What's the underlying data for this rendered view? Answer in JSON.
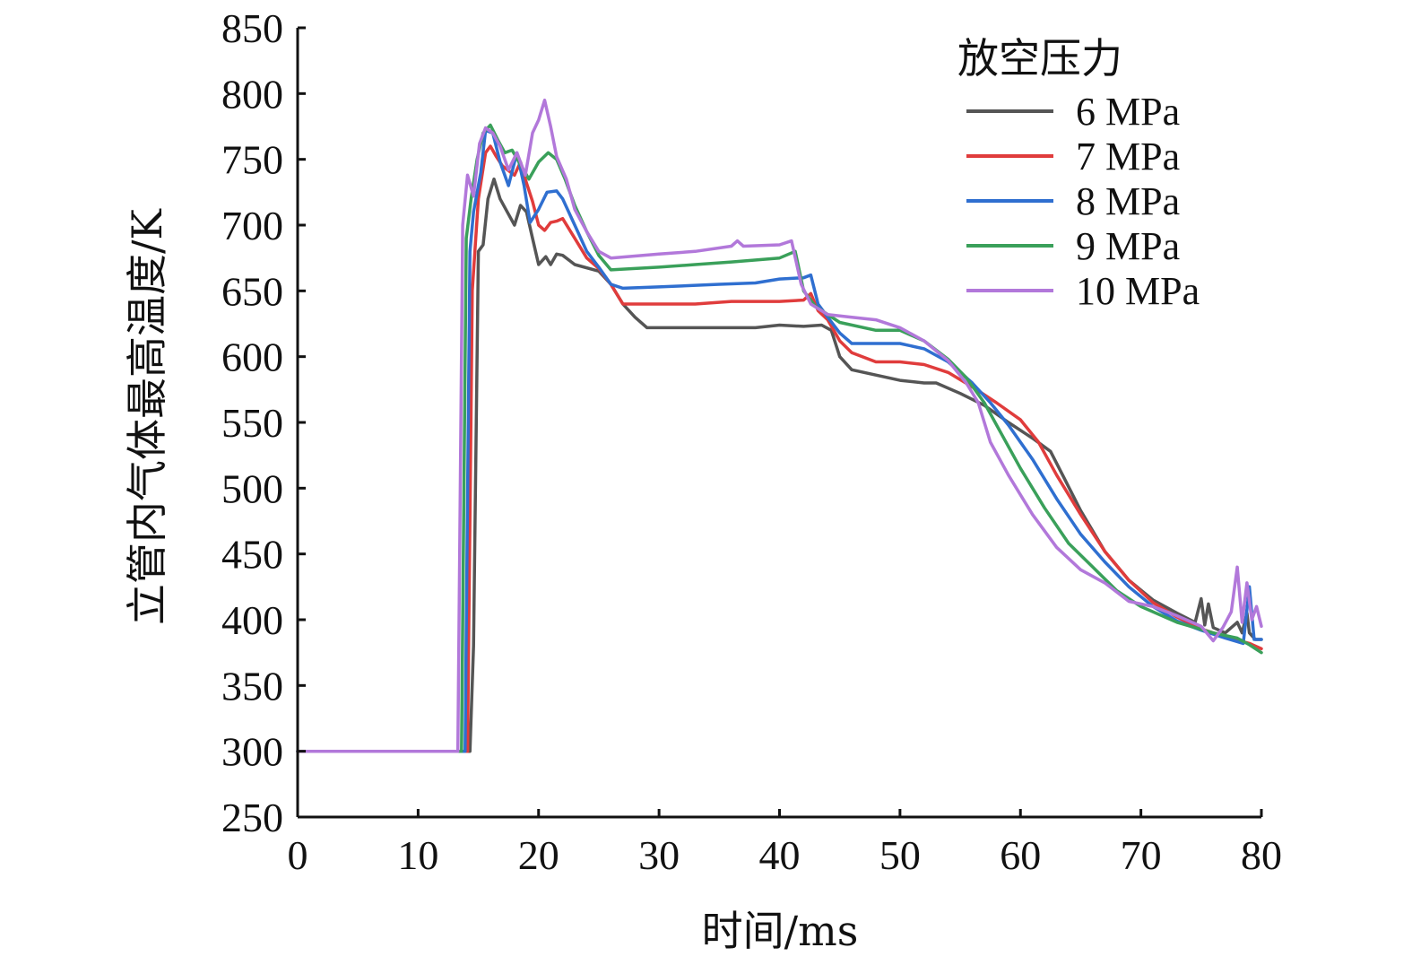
{
  "chart_data": {
    "type": "line",
    "title": "",
    "xlabel": "时间/ms",
    "ylabel": "立管内气体最高温度/K",
    "xlim": [
      0,
      80
    ],
    "ylim": [
      250,
      850
    ],
    "xticks": [
      0,
      10,
      20,
      30,
      40,
      50,
      60,
      70,
      80
    ],
    "yticks": [
      250,
      300,
      350,
      400,
      450,
      500,
      550,
      600,
      650,
      700,
      750,
      800,
      850
    ],
    "grid": false,
    "legend": {
      "title": "放空压力",
      "placement": "top-right"
    },
    "series": [
      {
        "name": "6 MPa",
        "color": "#555555",
        "points": [
          [
            0,
            300
          ],
          [
            13,
            300
          ],
          [
            14.3,
            300
          ],
          [
            14.6,
            380
          ],
          [
            15,
            680
          ],
          [
            15.4,
            685
          ],
          [
            15.8,
            720
          ],
          [
            16.3,
            735
          ],
          [
            16.8,
            720
          ],
          [
            17.4,
            710
          ],
          [
            18,
            700
          ],
          [
            18.5,
            715
          ],
          [
            19,
            710
          ],
          [
            19.5,
            690
          ],
          [
            20,
            670
          ],
          [
            20.6,
            676
          ],
          [
            21,
            670
          ],
          [
            21.5,
            678
          ],
          [
            22,
            677
          ],
          [
            23,
            670
          ],
          [
            25,
            665
          ],
          [
            26,
            655
          ],
          [
            27,
            640
          ],
          [
            28,
            630
          ],
          [
            29,
            622
          ],
          [
            35,
            622
          ],
          [
            38,
            622
          ],
          [
            40,
            624
          ],
          [
            42,
            623
          ],
          [
            43.5,
            624
          ],
          [
            44.3,
            620
          ],
          [
            45,
            600
          ],
          [
            46,
            590
          ],
          [
            48,
            586
          ],
          [
            50,
            582
          ],
          [
            52,
            580
          ],
          [
            53,
            580
          ],
          [
            55,
            572
          ],
          [
            57,
            563
          ],
          [
            59,
            550
          ],
          [
            61,
            538
          ],
          [
            62.5,
            528
          ],
          [
            63.5,
            510
          ],
          [
            65,
            483
          ],
          [
            67,
            452
          ],
          [
            69,
            430
          ],
          [
            71,
            415
          ],
          [
            73,
            405
          ],
          [
            74.5,
            398
          ],
          [
            75,
            416
          ],
          [
            75.3,
            396
          ],
          [
            75.6,
            412
          ],
          [
            76,
            394
          ],
          [
            77,
            390
          ],
          [
            78,
            398
          ],
          [
            78.4,
            390
          ],
          [
            78.8,
            405
          ],
          [
            79,
            390
          ],
          [
            79.5,
            385
          ],
          [
            80,
            385
          ]
        ]
      },
      {
        "name": "7 MPa",
        "color": "#e03c3c",
        "points": [
          [
            0,
            300
          ],
          [
            13.5,
            300
          ],
          [
            14.1,
            300
          ],
          [
            14.5,
            650
          ],
          [
            15,
            720
          ],
          [
            15.6,
            755
          ],
          [
            16,
            760
          ],
          [
            16.5,
            752
          ],
          [
            17,
            745
          ],
          [
            18,
            738
          ],
          [
            18.5,
            748
          ],
          [
            19,
            732
          ],
          [
            19.5,
            718
          ],
          [
            20,
            700
          ],
          [
            20.5,
            696
          ],
          [
            21,
            702
          ],
          [
            21.5,
            703
          ],
          [
            22,
            705
          ],
          [
            23,
            690
          ],
          [
            24,
            675
          ],
          [
            25,
            667
          ],
          [
            26,
            655
          ],
          [
            27,
            640
          ],
          [
            28,
            640
          ],
          [
            33,
            640
          ],
          [
            36,
            642
          ],
          [
            40,
            642
          ],
          [
            42,
            643
          ],
          [
            42.6,
            648
          ],
          [
            43.2,
            635
          ],
          [
            44,
            628
          ],
          [
            45,
            612
          ],
          [
            46,
            603
          ],
          [
            48,
            596
          ],
          [
            50,
            596
          ],
          [
            52,
            594
          ],
          [
            54,
            588
          ],
          [
            56,
            577
          ],
          [
            58,
            565
          ],
          [
            60,
            552
          ],
          [
            61.5,
            535
          ],
          [
            63,
            510
          ],
          [
            65,
            480
          ],
          [
            67,
            452
          ],
          [
            69,
            430
          ],
          [
            71,
            413
          ],
          [
            73,
            402
          ],
          [
            75,
            393
          ],
          [
            77,
            387
          ],
          [
            79,
            382
          ],
          [
            80,
            378
          ]
        ]
      },
      {
        "name": "8 MPa",
        "color": "#2f6fd0",
        "points": [
          [
            0,
            300
          ],
          [
            13,
            300
          ],
          [
            13.9,
            300
          ],
          [
            14.3,
            680
          ],
          [
            14.6,
            710
          ],
          [
            15.2,
            740
          ],
          [
            15.6,
            772
          ],
          [
            16.2,
            770
          ],
          [
            16.8,
            748
          ],
          [
            17.5,
            730
          ],
          [
            18.2,
            755
          ],
          [
            18.8,
            730
          ],
          [
            19.3,
            702
          ],
          [
            20,
            712
          ],
          [
            20.7,
            725
          ],
          [
            21.5,
            726
          ],
          [
            22,
            720
          ],
          [
            23,
            700
          ],
          [
            24,
            680
          ],
          [
            25,
            668
          ],
          [
            26,
            655
          ],
          [
            27,
            652
          ],
          [
            30,
            653
          ],
          [
            35,
            655
          ],
          [
            38,
            656
          ],
          [
            40,
            659
          ],
          [
            42,
            660
          ],
          [
            42.6,
            662
          ],
          [
            43.2,
            640
          ],
          [
            44,
            630
          ],
          [
            45,
            618
          ],
          [
            46,
            610
          ],
          [
            50,
            610
          ],
          [
            52,
            606
          ],
          [
            54,
            596
          ],
          [
            56,
            580
          ],
          [
            57.5,
            565
          ],
          [
            59,
            548
          ],
          [
            61,
            522
          ],
          [
            63,
            492
          ],
          [
            65,
            465
          ],
          [
            67,
            444
          ],
          [
            69,
            425
          ],
          [
            71,
            410
          ],
          [
            73,
            399
          ],
          [
            75,
            392
          ],
          [
            77,
            386
          ],
          [
            78.5,
            382
          ],
          [
            79,
            425
          ],
          [
            79.4,
            385
          ],
          [
            80,
            385
          ]
        ]
      },
      {
        "name": "9 MPa",
        "color": "#3aa05a",
        "points": [
          [
            0,
            300
          ],
          [
            13,
            300
          ],
          [
            13.6,
            300
          ],
          [
            14,
            690
          ],
          [
            14.4,
            720
          ],
          [
            14.9,
            750
          ],
          [
            15.4,
            770
          ],
          [
            16,
            776
          ],
          [
            16.6,
            765
          ],
          [
            17.2,
            755
          ],
          [
            17.8,
            757
          ],
          [
            18.5,
            746
          ],
          [
            19.2,
            735
          ],
          [
            20,
            748
          ],
          [
            20.8,
            755
          ],
          [
            21.5,
            750
          ],
          [
            22.2,
            735
          ],
          [
            23,
            715
          ],
          [
            24,
            695
          ],
          [
            25,
            677
          ],
          [
            26,
            666
          ],
          [
            30,
            668
          ],
          [
            33,
            670
          ],
          [
            36,
            672
          ],
          [
            40,
            675
          ],
          [
            41.3,
            680
          ],
          [
            42,
            650
          ],
          [
            43,
            638
          ],
          [
            45,
            626
          ],
          [
            48,
            620
          ],
          [
            50,
            620
          ],
          [
            52,
            612
          ],
          [
            54,
            598
          ],
          [
            55.5,
            584
          ],
          [
            57,
            565
          ],
          [
            58.5,
            540
          ],
          [
            60,
            515
          ],
          [
            62,
            485
          ],
          [
            64,
            458
          ],
          [
            66,
            440
          ],
          [
            68,
            422
          ],
          [
            70,
            410
          ],
          [
            73,
            398
          ],
          [
            76,
            390
          ],
          [
            78,
            386
          ],
          [
            79,
            381
          ],
          [
            80,
            375
          ]
        ]
      },
      {
        "name": "10 MPa",
        "color": "#b278da",
        "points": [
          [
            0,
            300
          ],
          [
            13,
            300
          ],
          [
            13.3,
            300
          ],
          [
            13.7,
            700
          ],
          [
            14.1,
            738
          ],
          [
            14.6,
            722
          ],
          [
            15.1,
            762
          ],
          [
            15.6,
            774
          ],
          [
            16.2,
            770
          ],
          [
            16.8,
            760
          ],
          [
            17.5,
            742
          ],
          [
            18.2,
            755
          ],
          [
            18.9,
            738
          ],
          [
            19.5,
            770
          ],
          [
            20,
            780
          ],
          [
            20.5,
            795
          ],
          [
            21,
            775
          ],
          [
            21.5,
            752
          ],
          [
            22.3,
            735
          ],
          [
            23,
            712
          ],
          [
            24,
            695
          ],
          [
            25,
            680
          ],
          [
            26,
            675
          ],
          [
            30,
            678
          ],
          [
            33,
            680
          ],
          [
            36,
            684
          ],
          [
            36.5,
            688
          ],
          [
            37,
            684
          ],
          [
            40,
            685
          ],
          [
            41,
            688
          ],
          [
            41.8,
            655
          ],
          [
            42.6,
            640
          ],
          [
            44,
            632
          ],
          [
            46,
            630
          ],
          [
            48,
            628
          ],
          [
            50,
            622
          ],
          [
            52,
            612
          ],
          [
            54,
            597
          ],
          [
            55.5,
            580
          ],
          [
            56.5,
            565
          ],
          [
            57.5,
            535
          ],
          [
            59,
            510
          ],
          [
            61,
            480
          ],
          [
            63,
            455
          ],
          [
            65,
            438
          ],
          [
            67,
            428
          ],
          [
            69,
            414
          ],
          [
            71,
            410
          ],
          [
            73,
            403
          ],
          [
            75,
            395
          ],
          [
            76,
            384
          ],
          [
            76.8,
            394
          ],
          [
            77.5,
            406
          ],
          [
            78,
            440
          ],
          [
            78.4,
            398
          ],
          [
            78.8,
            428
          ],
          [
            79.2,
            400
          ],
          [
            79.6,
            410
          ],
          [
            80,
            395
          ]
        ]
      }
    ]
  }
}
